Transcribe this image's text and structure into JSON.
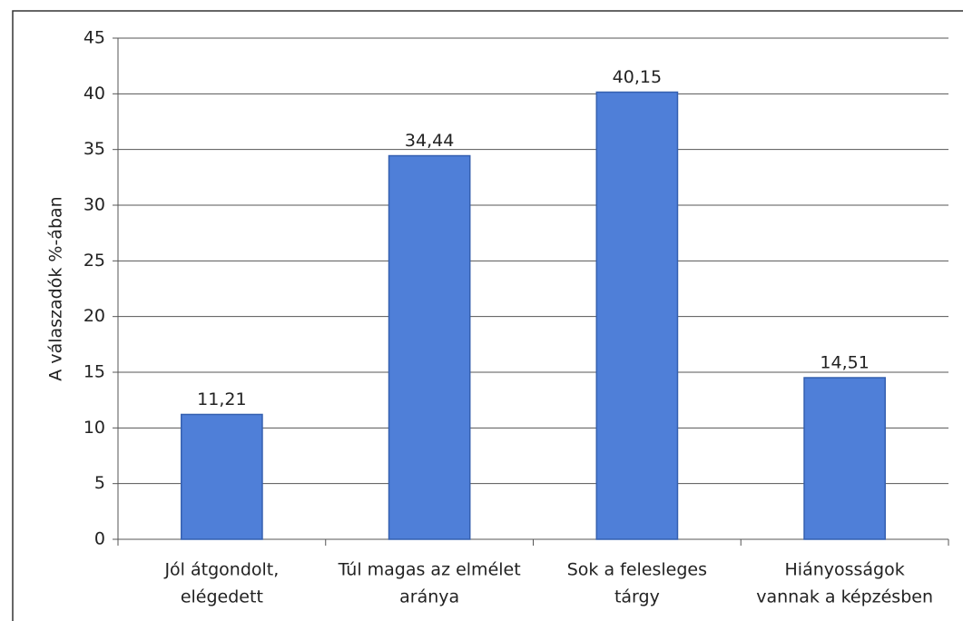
{
  "chart_data": {
    "type": "bar",
    "y_label": "A válaszadók %-ában",
    "categories": [
      [
        "Jól átgondolt,",
        "elégedett"
      ],
      [
        "Túl magas az elmélet",
        "aránya"
      ],
      [
        "Sok a felesleges",
        "tárgy"
      ],
      [
        "Hiányosságok",
        "vannak a képzésben"
      ]
    ],
    "values": [
      11.21,
      34.44,
      40.15,
      14.51
    ],
    "value_labels": [
      "11,21",
      "34,44",
      "40,15",
      "14,51"
    ],
    "color": "#4f7fd8",
    "ylim": [
      0,
      45
    ],
    "yticks": [
      0,
      5,
      10,
      15,
      20,
      25,
      30,
      35,
      40,
      45
    ],
    "grid": true
  }
}
